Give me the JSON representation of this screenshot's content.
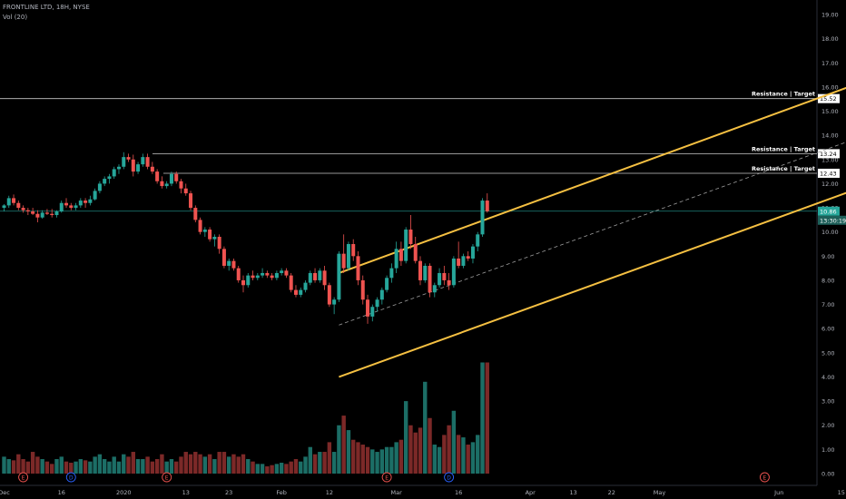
{
  "header": {
    "symbol_line": "FRONTLINE LTD, 18H, NYSE",
    "volume_line": "Vol (20)"
  },
  "chart_data": {
    "type": "candlestick",
    "ylim": [
      0,
      19.5
    ],
    "y_ticks": [
      "0.00",
      "1.00",
      "2.00",
      "3.00",
      "4.00",
      "5.00",
      "6.00",
      "7.00",
      "8.00",
      "9.00",
      "10.00",
      "11.00",
      "12.00",
      "13.00",
      "14.00",
      "15.00",
      "16.00",
      "17.00",
      "18.00",
      "19.00"
    ],
    "x_tick_labels": [
      {
        "label": "Dec",
        "t": 0
      },
      {
        "label": "16",
        "t": 12
      },
      {
        "label": "2020",
        "t": 25
      },
      {
        "label": "13",
        "t": 38
      },
      {
        "label": "23",
        "t": 47
      },
      {
        "label": "Feb",
        "t": 58
      },
      {
        "label": "12",
        "t": 68
      },
      {
        "label": "Mar",
        "t": 82
      },
      {
        "label": "16",
        "t": 95
      },
      {
        "label": "Apr",
        "t": 110
      },
      {
        "label": "13",
        "t": 119
      },
      {
        "label": "22",
        "t": 127
      },
      {
        "label": "May",
        "t": 137
      },
      {
        "label": "Jun",
        "t": 162
      },
      {
        "label": "15",
        "t": 175
      }
    ],
    "colors": {
      "up": "#26a69a",
      "down": "#ef5350",
      "channel": "#f5c042",
      "level": "#c8c8c8",
      "current_price": "#26a69a"
    },
    "price_levels": [
      {
        "label": "Resistance | Target",
        "value": 15.52
      },
      {
        "label": "Resistance | Target",
        "value": 13.24
      },
      {
        "label": "Resistance | Target",
        "value": 12.43
      }
    ],
    "current_price": {
      "value": 10.86,
      "price_label": "10.86",
      "countdown": "13:30:19"
    },
    "channel": {
      "upper": [
        {
          "t": 70,
          "y": 8.3
        },
        {
          "t": 180,
          "y": 16.25
        }
      ],
      "lower": [
        {
          "t": 70,
          "y": 4.0
        },
        {
          "t": 180,
          "y": 11.9
        }
      ],
      "mid": [
        {
          "t": 70,
          "y": 6.15
        },
        {
          "t": 180,
          "y": 14.0
        }
      ]
    },
    "event_markers": [
      {
        "t": 4,
        "label": "E"
      },
      {
        "t": 14,
        "label": "D"
      },
      {
        "t": 34,
        "label": "E"
      },
      {
        "t": 80,
        "label": "E"
      },
      {
        "t": 93,
        "label": "D"
      },
      {
        "t": 159,
        "label": "E"
      }
    ],
    "candles": [
      [
        11.0,
        11.15,
        10.85,
        11.1,
        0.7
      ],
      [
        11.1,
        11.5,
        11.0,
        11.4,
        0.6
      ],
      [
        11.4,
        11.55,
        11.1,
        11.2,
        0.55
      ],
      [
        11.2,
        11.3,
        10.9,
        11.0,
        0.8
      ],
      [
        11.0,
        11.1,
        10.8,
        10.9,
        0.6
      ],
      [
        10.9,
        11.0,
        10.7,
        10.85,
        0.5
      ],
      [
        10.85,
        11.0,
        10.7,
        10.75,
        0.9
      ],
      [
        10.75,
        10.9,
        10.4,
        10.6,
        0.7
      ],
      [
        10.6,
        10.9,
        10.55,
        10.8,
        0.6
      ],
      [
        10.8,
        10.95,
        10.7,
        10.75,
        0.5
      ],
      [
        10.75,
        10.95,
        10.6,
        10.7,
        0.4
      ],
      [
        10.7,
        10.9,
        10.6,
        10.85,
        0.6
      ],
      [
        10.85,
        11.3,
        10.8,
        11.2,
        0.7
      ],
      [
        11.2,
        11.4,
        11.0,
        11.1,
        0.5
      ],
      [
        11.1,
        11.2,
        10.9,
        11.0,
        0.45
      ],
      [
        11.0,
        11.2,
        10.9,
        11.1,
        0.5
      ],
      [
        11.1,
        11.4,
        11.0,
        11.3,
        0.6
      ],
      [
        11.3,
        11.4,
        11.0,
        11.2,
        0.55
      ],
      [
        11.2,
        11.5,
        11.1,
        11.35,
        0.5
      ],
      [
        11.35,
        11.8,
        11.3,
        11.7,
        0.7
      ],
      [
        11.7,
        12.1,
        11.6,
        12.0,
        0.8
      ],
      [
        12.0,
        12.3,
        11.9,
        12.2,
        0.6
      ],
      [
        12.2,
        12.4,
        12.0,
        12.3,
        0.5
      ],
      [
        12.3,
        12.7,
        12.2,
        12.6,
        0.7
      ],
      [
        12.6,
        12.8,
        12.4,
        12.7,
        0.5
      ],
      [
        12.7,
        13.3,
        12.6,
        13.1,
        0.8
      ],
      [
        13.1,
        13.24,
        12.9,
        13.0,
        0.7
      ],
      [
        13.0,
        13.2,
        12.3,
        12.5,
        0.9
      ],
      [
        12.5,
        12.9,
        12.4,
        12.8,
        0.6
      ],
      [
        12.8,
        13.24,
        12.7,
        13.1,
        0.6
      ],
      [
        13.1,
        13.24,
        12.6,
        12.7,
        0.7
      ],
      [
        12.7,
        12.9,
        12.4,
        12.5,
        0.5
      ],
      [
        12.5,
        12.6,
        12.0,
        12.1,
        0.6
      ],
      [
        12.1,
        12.3,
        11.8,
        11.9,
        0.8
      ],
      [
        11.9,
        12.1,
        11.8,
        12.0,
        0.5
      ],
      [
        12.0,
        12.5,
        11.9,
        12.4,
        0.6
      ],
      [
        12.4,
        12.5,
        12.0,
        12.1,
        0.5
      ],
      [
        12.1,
        12.2,
        11.6,
        11.8,
        0.7
      ],
      [
        11.8,
        12.0,
        11.5,
        11.6,
        0.9
      ],
      [
        11.6,
        11.7,
        10.9,
        11.0,
        0.8
      ],
      [
        11.0,
        11.1,
        10.4,
        10.5,
        0.9
      ],
      [
        10.5,
        10.6,
        9.9,
        10.0,
        0.8
      ],
      [
        10.0,
        10.2,
        9.8,
        10.1,
        0.7
      ],
      [
        10.1,
        10.2,
        9.6,
        9.7,
        0.8
      ],
      [
        9.7,
        9.9,
        9.4,
        9.8,
        0.6
      ],
      [
        9.8,
        9.9,
        9.1,
        9.3,
        0.9
      ],
      [
        9.3,
        9.4,
        8.5,
        8.6,
        0.9
      ],
      [
        8.6,
        8.9,
        8.4,
        8.8,
        0.7
      ],
      [
        8.8,
        8.9,
        8.4,
        8.5,
        0.8
      ],
      [
        8.5,
        8.6,
        7.9,
        8.0,
        0.7
      ],
      [
        8.0,
        8.2,
        7.5,
        7.8,
        0.8
      ],
      [
        7.8,
        8.3,
        7.7,
        8.2,
        0.6
      ],
      [
        8.2,
        8.4,
        8.0,
        8.1,
        0.5
      ],
      [
        8.1,
        8.3,
        8.0,
        8.2,
        0.4
      ],
      [
        8.2,
        8.5,
        8.1,
        8.3,
        0.4
      ],
      [
        8.3,
        8.4,
        8.1,
        8.2,
        0.3
      ],
      [
        8.2,
        8.3,
        8.0,
        8.1,
        0.35
      ],
      [
        8.1,
        8.4,
        8.0,
        8.3,
        0.4
      ],
      [
        8.3,
        8.5,
        8.2,
        8.4,
        0.45
      ],
      [
        8.4,
        8.5,
        8.1,
        8.2,
        0.4
      ],
      [
        8.2,
        8.3,
        7.5,
        7.6,
        0.5
      ],
      [
        7.6,
        7.8,
        7.3,
        7.4,
        0.6
      ],
      [
        7.4,
        7.7,
        7.3,
        7.6,
        0.5
      ],
      [
        7.6,
        8.0,
        7.5,
        7.9,
        0.7
      ],
      [
        7.9,
        8.4,
        7.8,
        8.3,
        1.1
      ],
      [
        8.3,
        8.5,
        7.9,
        8.0,
        0.8
      ],
      [
        8.0,
        8.5,
        7.9,
        8.4,
        0.9
      ],
      [
        8.4,
        8.6,
        7.6,
        7.8,
        0.9
      ],
      [
        7.8,
        7.9,
        6.9,
        7.0,
        1.3
      ],
      [
        7.0,
        7.3,
        6.6,
        7.2,
        0.9
      ],
      [
        7.2,
        9.2,
        7.1,
        9.1,
        2.0
      ],
      [
        9.1,
        9.9,
        8.3,
        8.5,
        2.4
      ],
      [
        8.5,
        9.6,
        8.4,
        9.5,
        1.8
      ],
      [
        9.5,
        9.7,
        8.8,
        9.0,
        1.4
      ],
      [
        9.0,
        9.2,
        7.8,
        8.0,
        1.3
      ],
      [
        8.0,
        8.2,
        7.0,
        7.2,
        1.2
      ],
      [
        7.2,
        7.4,
        6.2,
        6.5,
        1.1
      ],
      [
        6.5,
        7.0,
        6.3,
        6.9,
        1.0
      ],
      [
        6.9,
        7.3,
        6.7,
        7.2,
        0.9
      ],
      [
        7.2,
        7.7,
        7.0,
        7.6,
        1.0
      ],
      [
        7.6,
        8.2,
        7.5,
        8.1,
        1.1
      ],
      [
        8.1,
        8.7,
        7.9,
        8.5,
        1.1
      ],
      [
        8.5,
        9.6,
        8.3,
        9.3,
        1.3
      ],
      [
        9.3,
        9.6,
        8.6,
        8.8,
        1.4
      ],
      [
        8.8,
        10.2,
        8.7,
        10.1,
        3.0
      ],
      [
        10.1,
        10.7,
        9.3,
        9.5,
        2.0
      ],
      [
        9.5,
        9.8,
        8.7,
        8.8,
        1.7
      ],
      [
        8.8,
        9.0,
        7.8,
        8.0,
        1.9
      ],
      [
        8.0,
        8.7,
        7.9,
        8.6,
        3.8
      ],
      [
        8.6,
        8.7,
        7.3,
        7.5,
        2.3
      ],
      [
        7.5,
        7.9,
        7.3,
        7.8,
        1.2
      ],
      [
        7.8,
        8.5,
        7.7,
        8.3,
        1.1
      ],
      [
        8.3,
        8.6,
        7.8,
        8.0,
        1.6
      ],
      [
        8.0,
        8.3,
        7.6,
        7.8,
        2.0
      ],
      [
        7.8,
        9.0,
        7.7,
        8.9,
        2.6
      ],
      [
        8.9,
        9.6,
        8.5,
        8.6,
        1.6
      ],
      [
        8.6,
        9.1,
        8.5,
        9.0,
        1.5
      ],
      [
        9.0,
        9.2,
        8.8,
        8.9,
        1.2
      ],
      [
        8.9,
        9.5,
        8.7,
        9.4,
        1.3
      ],
      [
        9.4,
        10.0,
        9.2,
        9.9,
        1.6
      ],
      [
        9.9,
        11.4,
        9.8,
        11.3,
        4.6
      ],
      [
        11.3,
        11.6,
        10.8,
        10.86,
        4.6
      ]
    ]
  }
}
